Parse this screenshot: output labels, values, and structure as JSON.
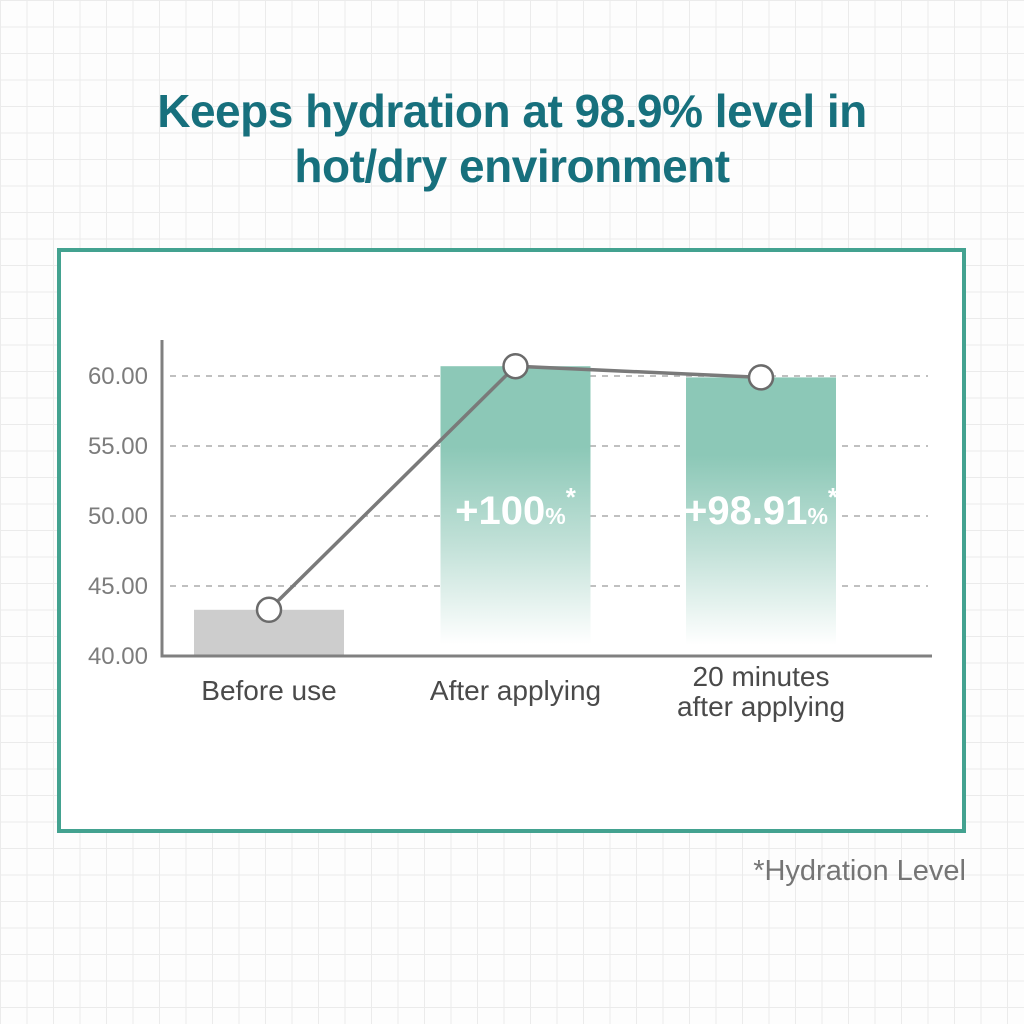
{
  "title": {
    "line1": "Keeps hydration at 98.9% level in",
    "line2": "hot/dry environment"
  },
  "footnote": "*Hydration Level",
  "colors": {
    "title_text": "#17707d",
    "card_border": "#43a290",
    "bar_teal": "#8cc8b7",
    "bar_gray": "#cdcdcd",
    "trend_line": "#7a7a7a",
    "marker_fill": "#ffffff",
    "marker_stroke": "#6b6b6b",
    "axis": "#808080",
    "gridline": "#c0c0c0",
    "tick_text": "#7c7c7c",
    "category_text": "#4a4a4a",
    "bar_label_text": "#ffffff",
    "footnote_text": "#757575"
  },
  "chart_data": {
    "type": "bar",
    "overlay_line": true,
    "title": "",
    "xlabel": "",
    "ylabel": "",
    "categories": [
      "Before use",
      "After applying",
      "20 minutes after applying"
    ],
    "category_lines": [
      [
        "Before use"
      ],
      [
        "After applying"
      ],
      [
        "20 minutes",
        "after applying"
      ]
    ],
    "values": [
      43.3,
      60.7,
      59.9
    ],
    "line_values": [
      43.3,
      60.7,
      59.9
    ],
    "bar_styles": [
      "gray",
      "teal",
      "teal"
    ],
    "bar_labels": [
      null,
      {
        "value": "+100",
        "unit": "%",
        "sup": "*"
      },
      {
        "value": "+98.91",
        "unit": "%",
        "sup": "*"
      }
    ],
    "yticks": [
      {
        "v": 40,
        "label": "40.00"
      },
      {
        "v": 45,
        "label": "45.00"
      },
      {
        "v": 50,
        "label": "50.00"
      },
      {
        "v": 55,
        "label": "55.00"
      },
      {
        "v": 60,
        "label": "60.00"
      }
    ],
    "ylim": [
      40,
      62.6
    ],
    "grid": "horizontal-dashed",
    "legend": "none"
  }
}
